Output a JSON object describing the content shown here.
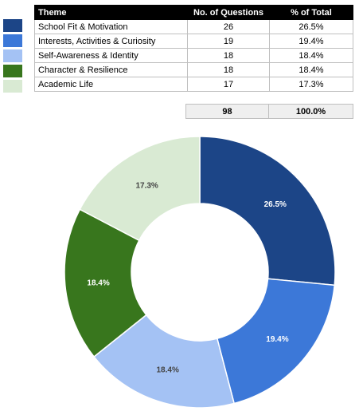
{
  "table": {
    "headers": [
      "Theme",
      "No. of Questions",
      "% of Total"
    ],
    "rows": [
      {
        "theme": "School Fit & Motivation",
        "questions": "26",
        "percent": "26.5%",
        "color": "#1c4587"
      },
      {
        "theme": "Interests, Activities & Curiosity",
        "questions": "19",
        "percent": "19.4%",
        "color": "#3c78d8"
      },
      {
        "theme": "Self-Awareness & Identity",
        "questions": "18",
        "percent": "18.4%",
        "color": "#a4c2f4"
      },
      {
        "theme": "Character & Resilience",
        "questions": "18",
        "percent": "18.4%",
        "color": "#38761d"
      },
      {
        "theme": "Academic Life",
        "questions": "17",
        "percent": "17.3%",
        "color": "#d9ead3"
      }
    ],
    "total_questions": "98",
    "total_percent": "100.0%"
  },
  "chart_data": {
    "type": "pie",
    "donut": true,
    "categories": [
      "School Fit & Motivation",
      "Interests, Activities & Curiosity",
      "Self-Awareness & Identity",
      "Character & Resilience",
      "Academic Life"
    ],
    "values": [
      26,
      19,
      18,
      18,
      17
    ],
    "labels": [
      "26.5%",
      "19.4%",
      "18.4%",
      "18.4%",
      "17.3%"
    ],
    "colors": [
      "#1c4587",
      "#3c78d8",
      "#a4c2f4",
      "#38761d",
      "#d9ead3"
    ],
    "label_colors": [
      "#ffffff",
      "#ffffff",
      "#444444",
      "#ffffff",
      "#444444"
    ]
  }
}
